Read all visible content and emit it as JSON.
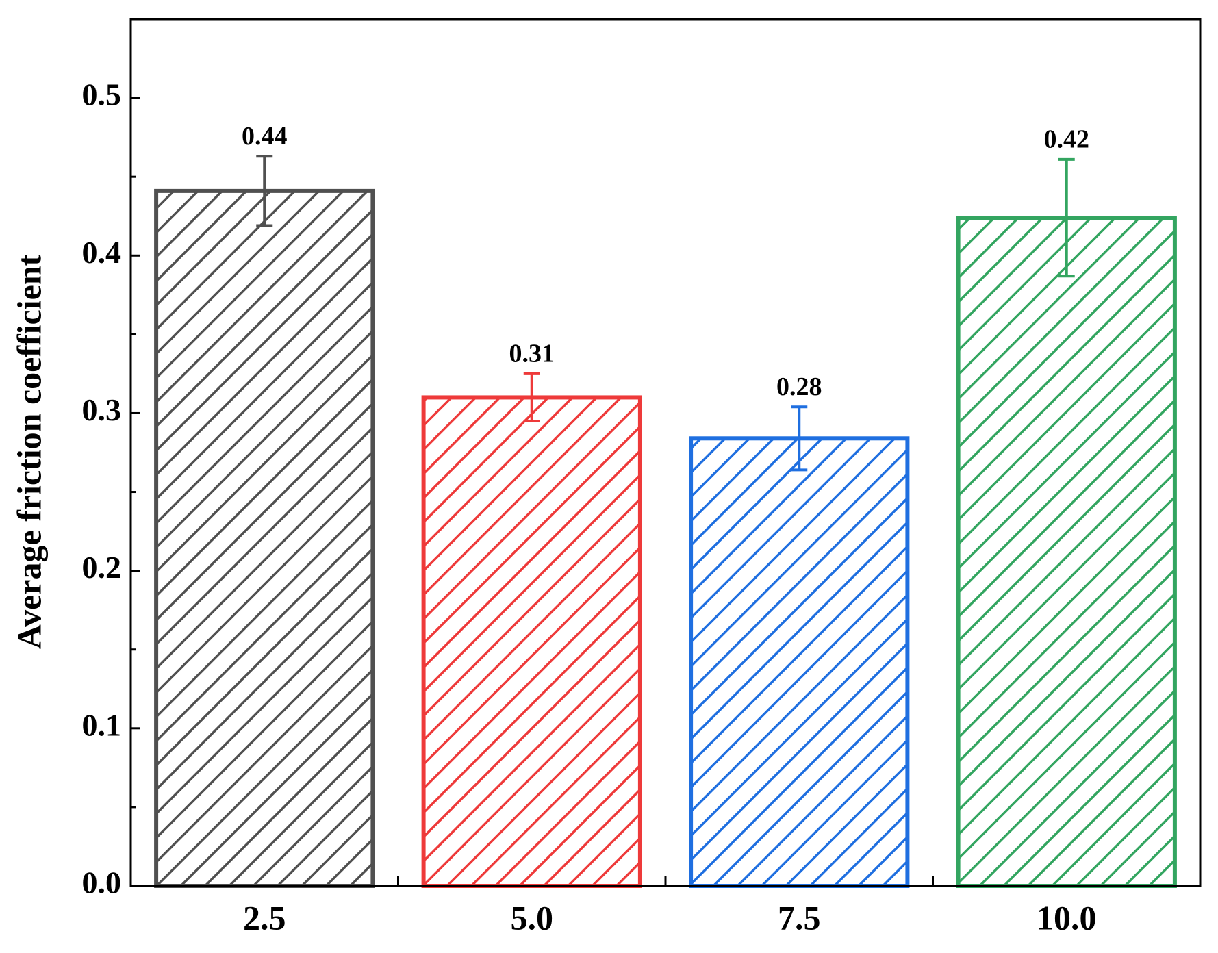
{
  "chart_data": {
    "type": "bar",
    "y_label": "Average friction coefficient",
    "categories": [
      "2.5",
      "5.0",
      "7.5",
      "10.0"
    ],
    "values": [
      0.441,
      0.31,
      0.284,
      0.424
    ],
    "value_labels": [
      "0.44",
      "0.31",
      "0.28",
      "0.42"
    ],
    "errors": [
      0.022,
      0.015,
      0.02,
      0.037
    ],
    "colors": [
      "#505050",
      "#ee3a3a",
      "#1f6fe0",
      "#33a560"
    ],
    "ylim": [
      0,
      0.55
    ],
    "yticks": [
      {
        "value": 0,
        "label": "0.0"
      },
      0.1,
      0.2,
      0.3,
      0.4,
      0.5
    ],
    "y_minor_ticks": [
      0.05,
      0.15,
      0.25,
      0.35,
      0.45
    ],
    "hatch": true
  }
}
